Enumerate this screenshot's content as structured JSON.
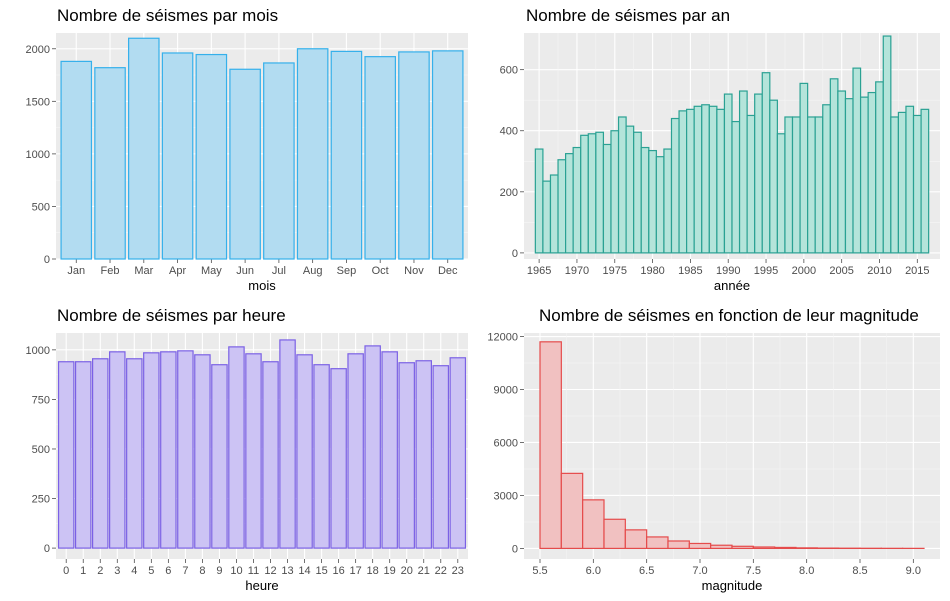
{
  "chart_data": [
    {
      "type": "bar",
      "title": "Nombre de séismes par mois",
      "xlabel": "mois",
      "ylabel": "",
      "categories": [
        "Jan",
        "Feb",
        "Mar",
        "Apr",
        "May",
        "Jun",
        "Jul",
        "Aug",
        "Sep",
        "Oct",
        "Nov",
        "Dec"
      ],
      "values": [
        1880,
        1820,
        2100,
        1960,
        1945,
        1805,
        1865,
        2000,
        1975,
        1925,
        1970,
        1980
      ],
      "ylim": [
        0,
        2150
      ],
      "yticks": [
        0,
        500,
        1000,
        1500,
        2000
      ],
      "grid": true,
      "fill": "#b2dcf1",
      "stroke": "#35b0eb"
    },
    {
      "type": "bar",
      "title": "Nombre de séismes par an",
      "xlabel": "année",
      "ylabel": "",
      "x": [
        1965,
        1966,
        1967,
        1968,
        1969,
        1970,
        1971,
        1972,
        1973,
        1974,
        1975,
        1976,
        1977,
        1978,
        1979,
        1980,
        1981,
        1982,
        1983,
        1984,
        1985,
        1986,
        1987,
        1988,
        1989,
        1990,
        1991,
        1992,
        1993,
        1994,
        1995,
        1996,
        1997,
        1998,
        1999,
        2000,
        2001,
        2002,
        2003,
        2004,
        2005,
        2006,
        2007,
        2008,
        2009,
        2010,
        2011,
        2012,
        2013,
        2014,
        2015,
        2016
      ],
      "values": [
        340,
        235,
        255,
        305,
        325,
        345,
        385,
        390,
        395,
        355,
        400,
        445,
        415,
        395,
        345,
        335,
        315,
        340,
        440,
        465,
        470,
        480,
        485,
        480,
        470,
        520,
        430,
        530,
        450,
        520,
        590,
        500,
        390,
        445,
        445,
        555,
        445,
        445,
        485,
        570,
        530,
        505,
        605,
        510,
        525,
        560,
        710,
        445,
        460,
        480,
        450,
        470
      ],
      "xlim": [
        1963,
        2018
      ],
      "xticks": [
        1965,
        1970,
        1975,
        1980,
        1985,
        1990,
        1995,
        2000,
        2005,
        2010,
        2015
      ],
      "ylim": [
        -20,
        720
      ],
      "yticks": [
        0,
        200,
        400,
        600
      ],
      "grid": true,
      "fill": "#b4e4da",
      "stroke": "#2aa193"
    },
    {
      "type": "bar",
      "title": "Nombre de séismes par heure",
      "xlabel": "heure",
      "ylabel": "",
      "categories": [
        "0",
        "1",
        "2",
        "3",
        "4",
        "5",
        "6",
        "7",
        "8",
        "9",
        "10",
        "11",
        "12",
        "13",
        "14",
        "15",
        "16",
        "17",
        "18",
        "19",
        "20",
        "21",
        "22",
        "23"
      ],
      "values": [
        940,
        940,
        955,
        990,
        955,
        985,
        990,
        995,
        975,
        925,
        1015,
        980,
        940,
        1050,
        975,
        925,
        905,
        980,
        1020,
        990,
        935,
        945,
        920,
        960
      ],
      "ylim": [
        -55,
        1085
      ],
      "yticks": [
        0,
        250,
        500,
        750,
        1000
      ],
      "grid": true,
      "fill": "#ccc3f4",
      "stroke": "#7b61e5"
    },
    {
      "type": "bar",
      "title": "Nombre de séismes en fonction de leur magnitude",
      "xlabel": "magnitude",
      "ylabel": "",
      "x": [
        5.6,
        5.8,
        6.0,
        6.2,
        6.4,
        6.6,
        6.8,
        7.0,
        7.2,
        7.4,
        7.6,
        7.8,
        8.0,
        8.2,
        8.4,
        8.6,
        8.8,
        9.0
      ],
      "values": [
        11700,
        4250,
        2750,
        1650,
        1050,
        650,
        420,
        280,
        180,
        120,
        80,
        55,
        30,
        18,
        12,
        8,
        5,
        3
      ],
      "xlim": [
        5.35,
        9.25
      ],
      "xticks": [
        5.5,
        6.0,
        6.5,
        7.0,
        7.5,
        8.0,
        8.5,
        9.0
      ],
      "xticklabels": [
        "5.5",
        "6.0",
        "6.5",
        "7.0",
        "7.5",
        "8.0",
        "8.5",
        "9.0"
      ],
      "ylim": [
        -600,
        12200
      ],
      "yticks": [
        0,
        3000,
        6000,
        9000,
        12000
      ],
      "grid": true,
      "fill": "#f1c1c1",
      "stroke": "#e54b4b"
    }
  ]
}
